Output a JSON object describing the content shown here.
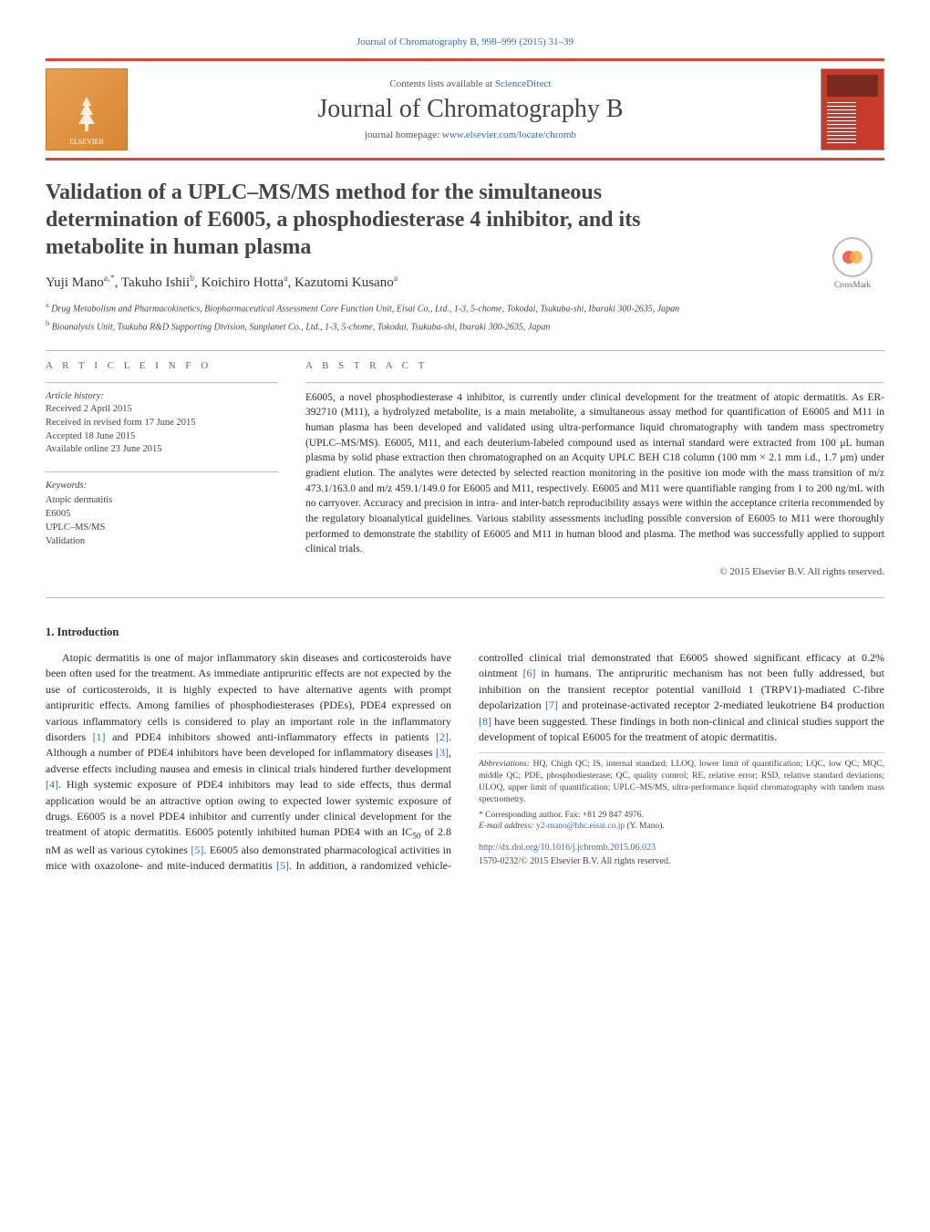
{
  "top_link": {
    "text": "Journal of Chromatography B, 998–999 (2015) 31–39",
    "color": "#3a6aa8"
  },
  "header": {
    "contents_prefix": "Contents lists available at ",
    "contents_link": "ScienceDirect",
    "journal_name": "Journal of Chromatography B",
    "homepage_prefix": "journal homepage: ",
    "homepage_link": "www.elsevier.com/locate/chromb",
    "elsevier_label": "ELSEVIER",
    "border_color": "#d94835"
  },
  "crossmark_label": "CrossMark",
  "title": "Validation of a UPLC–MS/MS method for the simultaneous determination of E6005, a phosphodiesterase 4 inhibitor, and its metabolite in human plasma",
  "authors_html": "Yuji Mano<sup>a,*</sup>, Takuho Ishii<sup>b</sup>, Koichiro Hotta<sup>a</sup>, Kazutomi Kusano<sup>a</sup>",
  "affiliations": [
    {
      "sup": "a",
      "text": "Drug Metabolism and Pharmacokinetics, Biopharmaceutical Assessment Core Function Unit, Eisai Co., Ltd., 1-3, 5-chome, Tokodai, Tsukuba-shi, Ibaraki 300-2635, Japan"
    },
    {
      "sup": "b",
      "text": "Bioanalysis Unit, Tsukuba R&D Supporting Division, Sunplanet Co., Ltd., 1-3, 5-chome, Tokodai, Tsukuba-shi, Ibaraki 300-2635, Japan"
    }
  ],
  "article_info": {
    "heading": "A R T I C L E   I N F O",
    "history_label": "Article history:",
    "history": [
      "Received 2 April 2015",
      "Received in revised form 17 June 2015",
      "Accepted 18 June 2015",
      "Available online 23 June 2015"
    ],
    "keywords_label": "Keywords:",
    "keywords": [
      "Atopic dermatitis",
      "E6005",
      "UPLC–MS/MS",
      "Validation"
    ]
  },
  "abstract": {
    "heading": "A B S T R A C T",
    "text": "E6005, a novel phosphodiesterase 4 inhibitor, is currently under clinical development for the treatment of atopic dermatitis. As ER-392710 (M11), a hydrolyzed metabolite, is a main metabolite, a simultaneous assay method for quantification of E6005 and M11 in human plasma has been developed and validated using ultra-performance liquid chromatography with tandem mass spectrometry (UPLC–MS/MS). E6005, M11, and each deuterium-labeled compound used as internal standard were extracted from 100 μL human plasma by solid phase extraction then chromatographed on an Acquity UPLC BEH C18 column (100 mm × 2.1 mm i.d., 1.7 μm) under gradient elution. The analytes were detected by selected reaction monitoring in the positive ion mode with the mass transition of m/z 473.1/163.0 and m/z 459.1/149.0 for E6005 and M11, respectively. E6005 and M11 were quantifiable ranging from 1 to 200 ng/mL with no carryover. Accuracy and precision in intra- and inter-batch reproducibility assays were within the acceptance criteria recommended by the regulatory bioanalytical guidelines. Various stability assessments including possible conversion of E6005 to M11 were thoroughly performed to demonstrate the stability of E6005 and M11 in human blood and plasma. The method was successfully applied to support clinical trials.",
    "copyright": "© 2015 Elsevier B.V. All rights reserved."
  },
  "intro": {
    "heading": "1. Introduction",
    "paragraph": "Atopic dermatitis is one of major inflammatory skin diseases and corticosteroids have been often used for the treatment. As immediate antipruritic effects are not expected by the use of corticosteroids, it is highly expected to have alternative agents with prompt antipruritic effects. Among families of phosphodiesterases (PDEs), PDE4 expressed on various inflammatory cells is considered to play an important role in the inflammatory disorders [1] and PDE4 inhibitors showed anti-inflammatory effects in patients [2]. Although a number of PDE4 inhibitors have been developed for inflammatory diseases [3], adverse effects including nausea and emesis in clinical trials hindered further development [4]. High systemic exposure of PDE4 inhibitors may lead to side effects, thus dermal application would be an attractive option owing to expected lower systemic exposure of drugs. E6005 is a novel PDE4 inhibitor and currently under clinical development for the treatment of atopic dermatitis. E6005 potently inhibited human PDE4 with an IC50 of 2.8 nM as well as various cytokines [5]. E6005 also demonstrated pharmacological activities in mice with oxazolone- and mite-induced dermatitis [5]. In addition, a randomized vehicle-controlled clinical trial demonstrated that E6005 showed significant efficacy at 0.2% ointment [6] in humans. The antipruritic mechanism has not been fully addressed, but inhibition on the transient receptor potential vanilloid 1 (TRPV1)-madiated C-fibre depolarization [7] and proteinase-activated receptor 2-mediated leukotriene B4 production [8] have been suggested. These findings in both non-clinical and clinical studies support the development of topical E6005 for the treatment of atopic dermatitis."
  },
  "footnotes": {
    "abbrev_label": "Abbreviations:",
    "abbrev_text": "HQ, Chigh QC; IS, internal standard; LLOQ, lower limit of quantification; LQC, low QC; MQC, middle QC; PDE, phosphodiesterase; QC, quality control; RE, relative error; RSD, relative standard deviations; ULOQ, upper limit of quantification; UPLC–MS/MS, ultra-performance liquid chromatography with tandem mass spectrometry.",
    "corr_label": "* Corresponding author. Fax: +81 29 847 4976.",
    "email_label": "E-mail address:",
    "email": "y2-mano@hhc.eisai.co.jp",
    "email_who": "(Y. Mano)."
  },
  "doi": {
    "url": "http://dx.doi.org/10.1016/j.jchromb.2015.06.023",
    "issn_copy": "1570-0232/© 2015 Elsevier B.V. All rights reserved."
  },
  "refs_color": "#3a6aa8"
}
